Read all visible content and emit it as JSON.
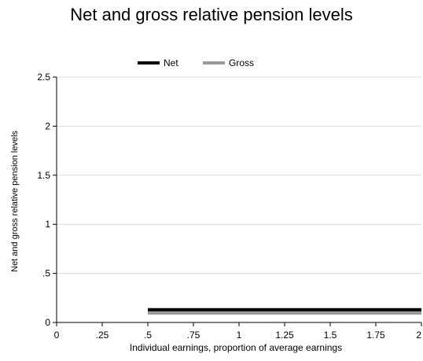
{
  "chart_data": {
    "type": "line",
    "title": "Net and gross relative pension levels",
    "xlabel": "Individual earnings, proportion of average earnings",
    "ylabel": "Net and gross relative pension levels",
    "xlim": [
      0,
      2
    ],
    "ylim": [
      0,
      2.5
    ],
    "x_ticks": [
      {
        "value": 0,
        "label": "0"
      },
      {
        "value": 0.25,
        "label": ".25"
      },
      {
        "value": 0.5,
        "label": ".5"
      },
      {
        "value": 0.75,
        "label": ".75"
      },
      {
        "value": 1,
        "label": "1"
      },
      {
        "value": 1.25,
        "label": "1.25"
      },
      {
        "value": 1.5,
        "label": "1.5"
      },
      {
        "value": 1.75,
        "label": "1.75"
      },
      {
        "value": 2,
        "label": "2"
      }
    ],
    "y_ticks": [
      {
        "value": 0,
        "label": "0"
      },
      {
        "value": 0.5,
        "label": ".5"
      },
      {
        "value": 1,
        "label": "1"
      },
      {
        "value": 1.5,
        "label": "1.5"
      },
      {
        "value": 2,
        "label": "2"
      },
      {
        "value": 2.5,
        "label": "2.5"
      }
    ],
    "grid": "horizontal",
    "legend_position": "top",
    "series": [
      {
        "name": "Net",
        "color": "#000000",
        "x": [
          0.5,
          2
        ],
        "y": [
          0.13,
          0.13
        ]
      },
      {
        "name": "Gross",
        "color": "#999999",
        "x": [
          0.5,
          2
        ],
        "y": [
          0.1,
          0.1
        ]
      }
    ]
  }
}
